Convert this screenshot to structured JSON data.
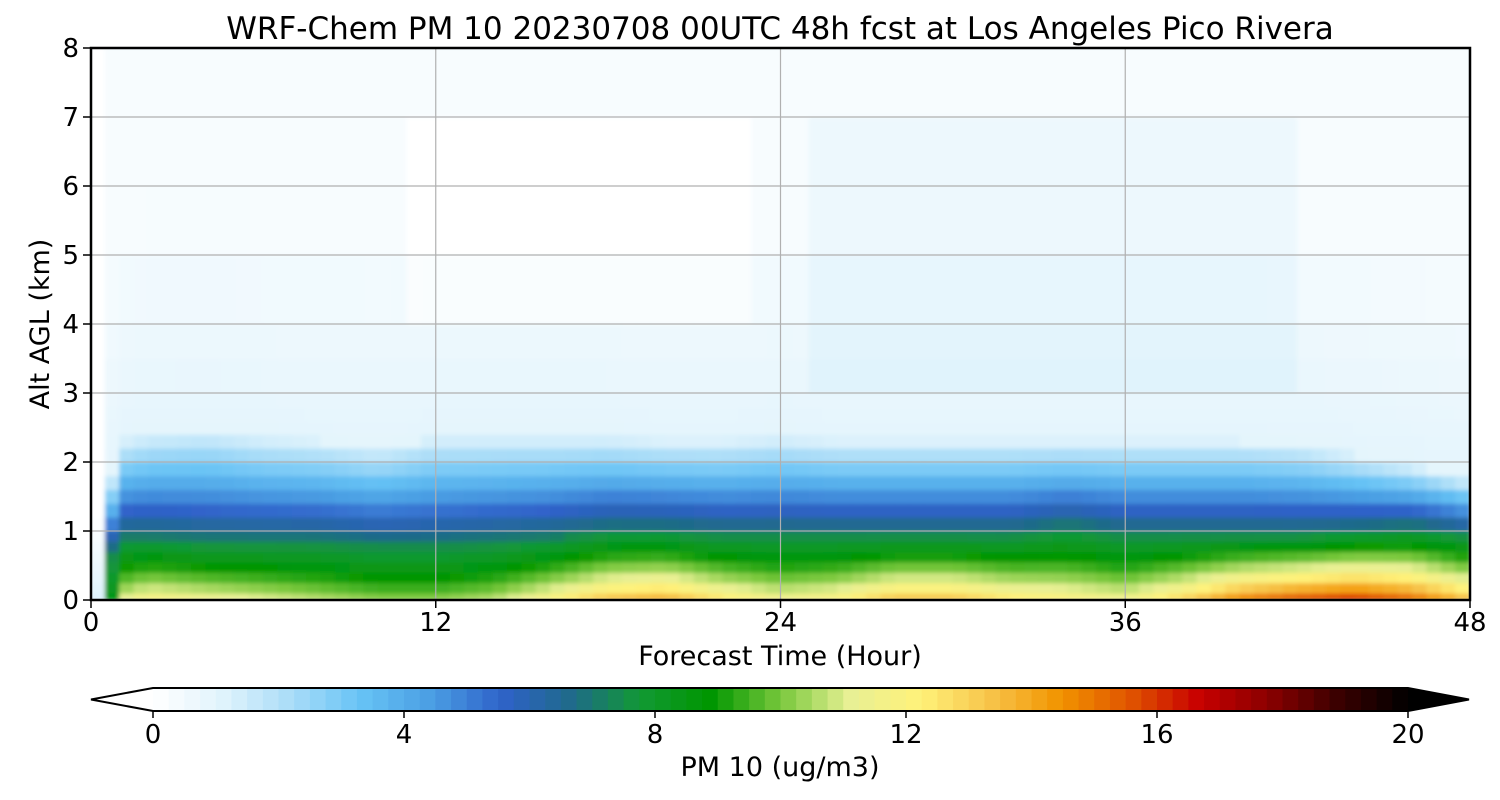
{
  "chart_data": {
    "type": "heatmap",
    "title": "WRF-Chem PM 10  20230708 00UTC 48h fcst at Los Angeles Pico Rivera",
    "xlabel": "Forecast Time (Hour)",
    "ylabel": "Alt AGL (km)",
    "xlim": [
      0,
      48
    ],
    "ylim": [
      0,
      8
    ],
    "x_ticks": [
      0,
      12,
      24,
      36,
      48
    ],
    "y_ticks": [
      0,
      1,
      2,
      3,
      4,
      5,
      6,
      7,
      8
    ],
    "grid": true,
    "colorbar": {
      "label": "PM 10  (ug/m3)",
      "range": [
        0,
        20
      ],
      "ticks": [
        0,
        4,
        8,
        12,
        16,
        20
      ],
      "extend": "both",
      "levels": 80,
      "colors": [
        "#ffffff",
        "#e0f3fc",
        "#a8dcf8",
        "#66c2f5",
        "#4a9ee3",
        "#2f62c9",
        "#1f6a8a",
        "#119933",
        "#009600",
        "#79c83c",
        "#e8f094",
        "#fff27a",
        "#f7c44a",
        "#f29400",
        "#e05500",
        "#c80000",
        "#8a0000",
        "#3a0000",
        "#000000"
      ]
    },
    "x": [
      0,
      1,
      2,
      4,
      6,
      8,
      10,
      12,
      14,
      16,
      18,
      20,
      22,
      24,
      26,
      28,
      30,
      32,
      34,
      36,
      38,
      40,
      42,
      44,
      46,
      48
    ],
    "y": [
      0,
      0.1,
      0.25,
      0.4,
      0.55,
      0.7,
      0.85,
      1.0,
      1.2,
      1.4,
      1.6,
      1.8,
      2.0,
      2.2,
      2.4,
      2.6,
      2.8,
      3.0,
      3.5,
      4.0,
      5.0,
      6.0,
      7.0,
      8.0
    ],
    "surface_profile": {
      "x": [
        0,
        1,
        2,
        4,
        6,
        8,
        10,
        12,
        14,
        16,
        18,
        20,
        22,
        24,
        26,
        28,
        30,
        32,
        34,
        36,
        38,
        40,
        42,
        44,
        46,
        48
      ],
      "surface_pm10": [
        0.2,
        11.5,
        12.5,
        12.0,
        11.5,
        11.0,
        10.5,
        10.5,
        11.0,
        12.5,
        14.0,
        14.5,
        13.0,
        12.0,
        12.5,
        14.0,
        14.0,
        13.0,
        12.5,
        12.0,
        13.5,
        15.5,
        16.5,
        17.0,
        16.0,
        14.0
      ],
      "mixed_layer_top_km": [
        0.05,
        0.9,
        0.9,
        0.85,
        0.85,
        0.85,
        0.8,
        0.8,
        0.85,
        0.9,
        1.0,
        1.0,
        0.95,
        0.95,
        0.95,
        0.95,
        0.95,
        0.95,
        1.05,
        0.95,
        0.95,
        0.95,
        0.95,
        1.0,
        1.05,
        0.95
      ],
      "blue_layer_top_km": [
        0.3,
        2.3,
        2.4,
        2.45,
        2.35,
        2.3,
        2.2,
        2.35,
        2.35,
        2.35,
        2.35,
        2.3,
        2.3,
        2.35,
        2.3,
        2.3,
        2.3,
        2.3,
        2.3,
        2.3,
        2.3,
        2.3,
        2.25,
        2.1,
        1.95,
        1.75
      ]
    }
  }
}
